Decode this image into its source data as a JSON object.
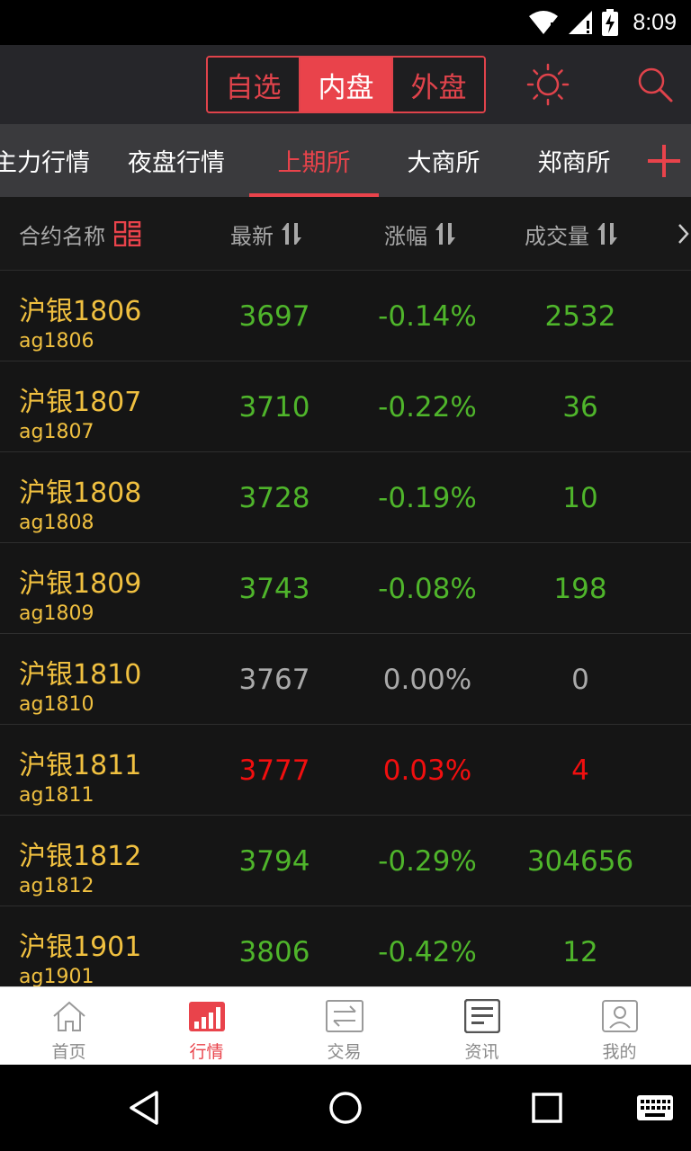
{
  "status": {
    "time": "8:09"
  },
  "header": {
    "segments": [
      {
        "label": "自选",
        "active": false
      },
      {
        "label": "内盘",
        "active": true
      },
      {
        "label": "外盘",
        "active": false
      }
    ],
    "icons": [
      "brightness-icon",
      "search-icon"
    ]
  },
  "tabs": [
    {
      "label": "主力行情",
      "active": false
    },
    {
      "label": "夜盘行情",
      "active": false
    },
    {
      "label": "上期所",
      "active": true
    },
    {
      "label": "大商所",
      "active": false
    },
    {
      "label": "郑商所",
      "active": false
    }
  ],
  "columns": {
    "name": "合约名称",
    "last": "最新",
    "change": "涨幅",
    "volume": "成交量"
  },
  "rows": [
    {
      "name": "沪银1806",
      "code": "ag1806",
      "last": "3697",
      "change": "-0.14%",
      "volume": "2532",
      "trend": "down"
    },
    {
      "name": "沪银1807",
      "code": "ag1807",
      "last": "3710",
      "change": "-0.22%",
      "volume": "36",
      "trend": "down"
    },
    {
      "name": "沪银1808",
      "code": "ag1808",
      "last": "3728",
      "change": "-0.19%",
      "volume": "10",
      "trend": "down"
    },
    {
      "name": "沪银1809",
      "code": "ag1809",
      "last": "3743",
      "change": "-0.08%",
      "volume": "198",
      "trend": "down"
    },
    {
      "name": "沪银1810",
      "code": "ag1810",
      "last": "3767",
      "change": "0.00%",
      "volume": "0",
      "trend": "flat"
    },
    {
      "name": "沪银1811",
      "code": "ag1811",
      "last": "3777",
      "change": "0.03%",
      "volume": "4",
      "trend": "up"
    },
    {
      "name": "沪银1812",
      "code": "ag1812",
      "last": "3794",
      "change": "-0.29%",
      "volume": "304656",
      "trend": "down"
    },
    {
      "name": "沪银1901",
      "code": "ag1901",
      "last": "3806",
      "change": "-0.42%",
      "volume": "12",
      "trend": "down"
    }
  ],
  "bottom_nav": [
    {
      "label": "首页",
      "icon": "home-icon",
      "active": false
    },
    {
      "label": "行情",
      "icon": "market-icon",
      "active": true
    },
    {
      "label": "交易",
      "icon": "trade-icon",
      "active": false
    },
    {
      "label": "资讯",
      "icon": "news-icon",
      "active": false
    },
    {
      "label": "我的",
      "icon": "profile-icon",
      "active": false
    }
  ],
  "colors": {
    "accent": "#e9434b",
    "up": "#f10f0f",
    "down": "#4fb52b",
    "flat": "#a9a9a9",
    "name": "#f0c040"
  }
}
